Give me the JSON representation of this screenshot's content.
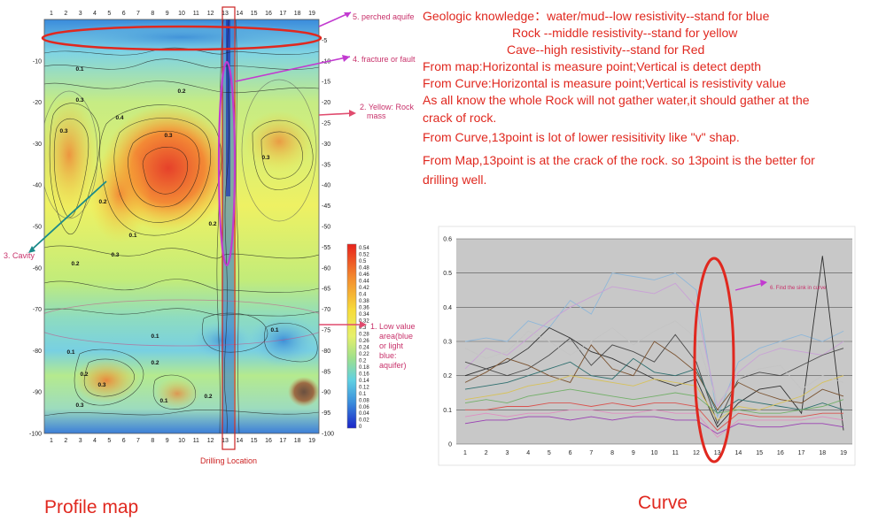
{
  "notes": [
    "Geologic knowledge：water/mud--low resistivity--stand for blue",
    "Rock --middle resistivity--stand for yellow",
    "Cave--high resistivity--stand for Red",
    "From map:Horizontal is measure point;Vertical is detect depth",
    "From Curve:Horizontal is measure point;Vertical is resistivity value",
    "As all know the whole Rock will not gather water,it should gather at the",
    "crack of rock.",
    "From Curve,13point is lot of lower resisitivity like \"v\" shap.",
    "From Map,13point is at the crack of the rock. so 13point is the better for",
    "drilling well."
  ],
  "captions": {
    "profile": "Profile map",
    "curve": "Curve",
    "drilling": "Drilling Location"
  },
  "annotations": {
    "a1_lines": [
      "1. Low value",
      "area(blue",
      "or light",
      "blue:",
      "aquifer)"
    ],
    "a2_lines": [
      "2. Yellow: Rock",
      "mass"
    ],
    "a3": "3. Cavity",
    "a4": "4. fracture or fault",
    "a5": "5. perched aquife",
    "a6": "6. Find the sink in curve"
  },
  "colors": {
    "text_red": "#e0281f",
    "annotation_magenta": "#c8326b",
    "highlight_red": "#e0281f",
    "low_blue": "#2233cc",
    "mid_yellow": "#f5ef3a",
    "high_red": "#e03020"
  },
  "chart_data": [
    {
      "type": "heatmap",
      "x_ticks": [
        "1",
        "2",
        "3",
        "4",
        "5",
        "6",
        "7",
        "8",
        "9",
        "10",
        "11",
        "12",
        "13",
        "14",
        "15",
        "16",
        "17",
        "18",
        "19"
      ],
      "y_ticks_left": [
        "-10",
        "-20",
        "-30",
        "-40",
        "-50",
        "-60",
        "-70",
        "-80",
        "-90",
        "-100"
      ],
      "y_ticks_right": [
        "-5",
        "-10",
        "-15",
        "-20",
        "-25",
        "-30",
        "-35",
        "-40",
        "-45",
        "-50",
        "-55",
        "-60",
        "-65",
        "-70",
        "-75",
        "-80",
        "-85",
        "-90",
        "-95",
        "-100"
      ],
      "ylim": [
        -100,
        0
      ],
      "highlight_point": 13,
      "contour_labels": [
        "0.1",
        "0.2",
        "0.3",
        "0.4",
        "0.3",
        "0.2",
        "0.1",
        "0.2",
        "0.3",
        "0.3",
        "0.3",
        "0.2",
        "0.1",
        "0.1",
        "0.1",
        "0.2",
        "0.3",
        "0.2",
        "0.1",
        "0.3",
        "0.2"
      ],
      "colorbar": [
        "0.54",
        "0.52",
        "0.5",
        "0.48",
        "0.46",
        "0.44",
        "0.42",
        "0.4",
        "0.38",
        "0.36",
        "0.34",
        "0.32",
        "0.3",
        "0.28",
        "0.26",
        "0.24",
        "0.22",
        "0.2",
        "0.18",
        "0.16",
        "0.14",
        "0.12",
        "0.1",
        "0.08",
        "0.06",
        "0.04",
        "0.02",
        "0"
      ]
    },
    {
      "type": "line",
      "x": [
        1,
        2,
        3,
        4,
        5,
        6,
        7,
        8,
        9,
        10,
        11,
        12,
        13,
        14,
        15,
        16,
        17,
        18,
        19
      ],
      "ylim": [
        0,
        0.6
      ],
      "y_ticks": [
        "0",
        "0.1",
        "0.2",
        "0.3",
        "0.4",
        "0.5",
        "0.6"
      ],
      "grid": true,
      "series": [
        {
          "color": "#8fb7d9",
          "values": [
            0.3,
            0.31,
            0.3,
            0.36,
            0.34,
            0.42,
            0.38,
            0.5,
            0.49,
            0.48,
            0.5,
            0.45,
            0.08,
            0.24,
            0.28,
            0.3,
            0.32,
            0.3,
            0.33
          ]
        },
        {
          "color": "#c9a1d6",
          "values": [
            0.22,
            0.28,
            0.26,
            0.31,
            0.36,
            0.4,
            0.43,
            0.46,
            0.45,
            0.44,
            0.47,
            0.4,
            0.11,
            0.21,
            0.26,
            0.28,
            0.27,
            0.26,
            0.3
          ]
        },
        {
          "color": "#303030",
          "values": [
            0.2,
            0.22,
            0.24,
            0.28,
            0.34,
            0.31,
            0.27,
            0.25,
            0.22,
            0.19,
            0.17,
            0.19,
            0.05,
            0.12,
            0.16,
            0.17,
            0.09,
            0.55,
            0.04
          ]
        },
        {
          "color": "#4a4a4a",
          "values": [
            0.24,
            0.22,
            0.2,
            0.22,
            0.26,
            0.31,
            0.23,
            0.29,
            0.27,
            0.24,
            0.32,
            0.24,
            0.06,
            0.19,
            0.21,
            0.2,
            0.23,
            0.26,
            0.28
          ]
        },
        {
          "color": "#7a5230",
          "values": [
            0.18,
            0.21,
            0.25,
            0.23,
            0.2,
            0.18,
            0.29,
            0.22,
            0.2,
            0.3,
            0.26,
            0.21,
            0.1,
            0.18,
            0.15,
            0.13,
            0.12,
            0.16,
            0.14
          ]
        },
        {
          "color": "#2f6f6f",
          "values": [
            0.16,
            0.17,
            0.18,
            0.2,
            0.22,
            0.24,
            0.2,
            0.19,
            0.25,
            0.21,
            0.2,
            0.22,
            0.09,
            0.13,
            0.12,
            0.11,
            0.1,
            0.12,
            0.1
          ]
        },
        {
          "color": "#d7c25b",
          "values": [
            0.13,
            0.14,
            0.15,
            0.17,
            0.18,
            0.2,
            0.19,
            0.18,
            0.17,
            0.19,
            0.18,
            0.17,
            0.07,
            0.11,
            0.1,
            0.12,
            0.14,
            0.18,
            0.2
          ]
        },
        {
          "color": "#74b06a",
          "values": [
            0.12,
            0.13,
            0.12,
            0.14,
            0.15,
            0.16,
            0.15,
            0.14,
            0.13,
            0.14,
            0.15,
            0.14,
            0.09,
            0.1,
            0.09,
            0.09,
            0.1,
            0.11,
            0.13
          ]
        },
        {
          "color": "#d9534f",
          "values": [
            0.1,
            0.1,
            0.11,
            0.11,
            0.12,
            0.12,
            0.11,
            0.12,
            0.11,
            0.12,
            0.12,
            0.11,
            0.04,
            0.09,
            0.08,
            0.08,
            0.08,
            0.09,
            0.09
          ]
        },
        {
          "color": "#9a3fb3",
          "values": [
            0.06,
            0.07,
            0.07,
            0.08,
            0.08,
            0.07,
            0.08,
            0.07,
            0.08,
            0.08,
            0.07,
            0.07,
            0.03,
            0.06,
            0.05,
            0.05,
            0.06,
            0.06,
            0.05
          ]
        },
        {
          "color": "#e08ec0",
          "values": [
            0.08,
            0.09,
            0.08,
            0.09,
            0.09,
            0.1,
            0.1,
            0.09,
            0.09,
            0.1,
            0.09,
            0.09,
            0.02,
            0.07,
            0.07,
            0.07,
            0.07,
            0.08,
            0.07
          ]
        },
        {
          "color": "#c4c4c4",
          "values": [
            0.28,
            0.25,
            0.27,
            0.33,
            0.3,
            0.26,
            0.3,
            0.34,
            0.29,
            0.33,
            0.36,
            0.31,
            0.12,
            0.19,
            0.22,
            0.23,
            0.16,
            0.2,
            0.18
          ]
        }
      ]
    }
  ]
}
